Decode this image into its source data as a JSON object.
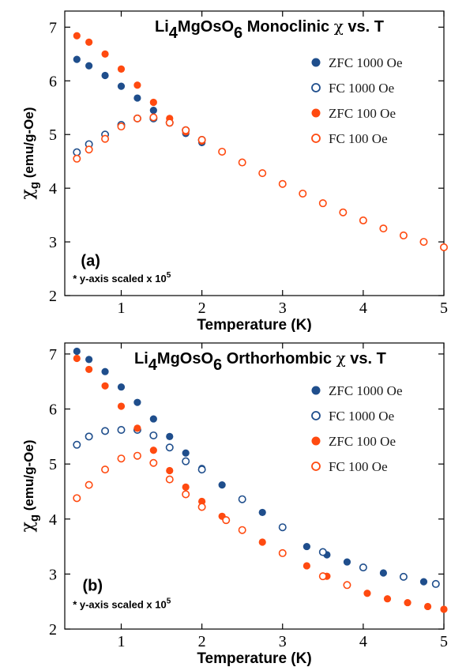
{
  "colors": {
    "zfc1000": "#1f4e8c",
    "fc1000": "#1f4e8c",
    "zfc100": "#ff4a10",
    "fc100": "#ff4a10"
  },
  "chart_data": [
    {
      "type": "scatter",
      "panel_label": "(a)",
      "title_main": "Li",
      "title_sub1": "4",
      "title_mid": "MgOsO",
      "title_sub2": "6",
      "title_rest": " Monoclinic ",
      "title_chi": "χ",
      "title_end": " vs. T",
      "xlabel": "Temperature (K)",
      "ylabel_chi": "χ",
      "ylabel_sub": "g",
      "ylabel_rest": " (emu/g-Oe)",
      "note": "* y-axis scaled x 10",
      "note_sup": "5",
      "xlim": [
        0.3,
        5
      ],
      "ylim": [
        2,
        7.3
      ],
      "xticks": [
        1,
        2,
        3,
        4,
        5
      ],
      "yticks": [
        2,
        3,
        4,
        5,
        6,
        7
      ],
      "legend_position": "top-right",
      "series": [
        {
          "name": "ZFC 1000 Oe",
          "marker": "filled",
          "color_key": "zfc1000",
          "x": [
            0.45,
            0.6,
            0.8,
            1.0,
            1.2,
            1.4,
            1.6,
            1.8,
            2.0
          ],
          "y": [
            6.4,
            6.28,
            6.1,
            5.9,
            5.68,
            5.45,
            5.22,
            5.02,
            4.85
          ]
        },
        {
          "name": "FC 1000 Oe",
          "marker": "open",
          "color_key": "fc1000",
          "x": [
            0.45,
            0.6,
            0.8,
            1.0,
            1.2,
            1.4,
            1.6,
            1.8,
            2.0
          ],
          "y": [
            4.67,
            4.82,
            5.0,
            5.18,
            5.3,
            5.3,
            5.22,
            5.08,
            4.9
          ]
        },
        {
          "name": "ZFC 100 Oe",
          "marker": "filled",
          "color_key": "zfc100",
          "x": [
            0.45,
            0.6,
            0.8,
            1.0,
            1.2,
            1.4,
            1.6,
            1.8,
            2.0,
            2.25,
            2.5,
            2.75,
            3.0,
            3.25,
            3.5,
            3.75,
            4.0,
            4.25,
            4.5,
            4.75,
            5.0
          ],
          "y": [
            6.84,
            6.72,
            6.5,
            6.22,
            5.92,
            5.6,
            5.3,
            5.05,
            4.88,
            4.68,
            4.48,
            4.28,
            4.08,
            3.9,
            3.72,
            3.55,
            3.4,
            3.25,
            3.12,
            3.0,
            2.9
          ]
        },
        {
          "name": "FC 100 Oe",
          "marker": "open",
          "color_key": "fc100",
          "x": [
            0.45,
            0.6,
            0.8,
            1.0,
            1.2,
            1.4,
            1.6,
            1.8,
            2.0,
            2.25,
            2.5,
            2.75,
            3.0,
            3.25,
            3.5,
            3.75,
            4.0,
            4.25,
            4.5,
            4.75,
            5.0
          ],
          "y": [
            4.55,
            4.72,
            4.92,
            5.15,
            5.3,
            5.32,
            5.22,
            5.08,
            4.9,
            4.68,
            4.48,
            4.28,
            4.08,
            3.9,
            3.72,
            3.55,
            3.4,
            3.25,
            3.12,
            3.0,
            2.9
          ]
        }
      ]
    },
    {
      "type": "scatter",
      "panel_label": "(b)",
      "title_main": "Li",
      "title_sub1": "4",
      "title_mid": "MgOsO",
      "title_sub2": "6",
      "title_rest": " Orthorhombic ",
      "title_chi": "χ",
      "title_end": " vs. T",
      "xlabel": "Temperature (K)",
      "ylabel_chi": "χ",
      "ylabel_sub": "g",
      "ylabel_rest": " (emu/g-Oe)",
      "note": "* y-axis scaled x 10",
      "note_sup": "5",
      "xlim": [
        0.3,
        5
      ],
      "ylim": [
        2,
        7.2
      ],
      "xticks": [
        1,
        2,
        3,
        4,
        5
      ],
      "yticks": [
        2,
        3,
        4,
        5,
        6,
        7
      ],
      "legend_position": "top-right",
      "series": [
        {
          "name": "ZFC 1000 Oe",
          "marker": "filled",
          "color_key": "zfc1000",
          "x": [
            0.45,
            0.6,
            0.8,
            1.0,
            1.2,
            1.4,
            1.6,
            1.8,
            2.0,
            2.25,
            2.5,
            2.75,
            3.0,
            3.3,
            3.55,
            3.8,
            4.0,
            4.25,
            4.5,
            4.75,
            4.9
          ],
          "y": [
            7.05,
            6.9,
            6.68,
            6.4,
            6.12,
            5.82,
            5.5,
            5.2,
            4.92,
            4.62,
            4.36,
            4.12,
            3.85,
            3.5,
            3.35,
            3.22,
            3.12,
            3.02,
            2.95,
            2.86,
            2.82
          ]
        },
        {
          "name": "FC 1000 Oe",
          "marker": "open",
          "color_key": "fc1000",
          "x": [
            0.45,
            0.6,
            0.8,
            1.0,
            1.2,
            1.4,
            1.6,
            1.8,
            2.0,
            2.5,
            3.0,
            3.5,
            4.0,
            4.5,
            4.9
          ],
          "y": [
            5.35,
            5.5,
            5.6,
            5.62,
            5.62,
            5.52,
            5.3,
            5.05,
            4.9,
            4.36,
            3.85,
            3.4,
            3.12,
            2.95,
            2.82
          ]
        },
        {
          "name": "ZFC 100 Oe",
          "marker": "filled",
          "color_key": "zfc100",
          "x": [
            0.45,
            0.6,
            0.8,
            1.0,
            1.2,
            1.4,
            1.6,
            1.8,
            2.0,
            2.25,
            2.5,
            2.75,
            3.0,
            3.3,
            3.55,
            3.8,
            4.05,
            4.3,
            4.55,
            4.8,
            5.0
          ],
          "y": [
            6.92,
            6.72,
            6.42,
            6.05,
            5.65,
            5.25,
            4.88,
            4.58,
            4.32,
            4.05,
            3.8,
            3.58,
            3.38,
            3.15,
            2.96,
            2.8,
            2.65,
            2.55,
            2.48,
            2.41,
            2.36
          ]
        },
        {
          "name": "FC 100 Oe",
          "marker": "open",
          "color_key": "fc100",
          "x": [
            0.45,
            0.6,
            0.8,
            1.0,
            1.2,
            1.4,
            1.6,
            1.8,
            2.0,
            2.3,
            2.5,
            3.0,
            3.5,
            3.8
          ],
          "y": [
            4.38,
            4.62,
            4.9,
            5.1,
            5.15,
            5.02,
            4.72,
            4.45,
            4.22,
            3.98,
            3.8,
            3.38,
            2.96,
            2.8
          ]
        }
      ]
    }
  ]
}
